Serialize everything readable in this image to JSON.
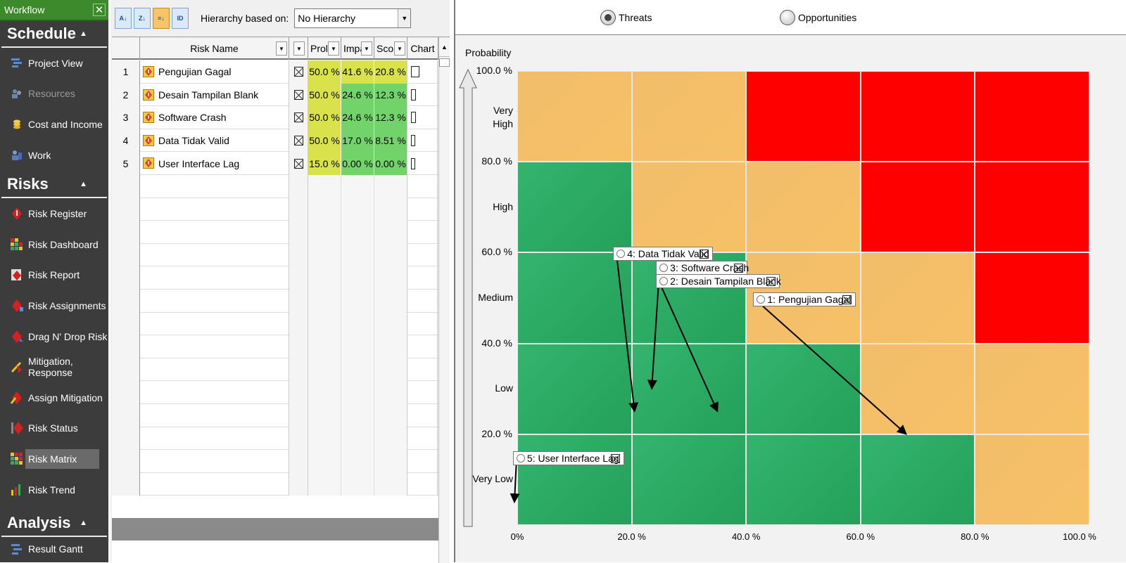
{
  "sidebar": {
    "title": "Workflow",
    "sections": [
      {
        "title": "Schedule",
        "items": [
          "Project View",
          "Resources",
          "Cost and Income",
          "Work"
        ]
      },
      {
        "title": "Risks",
        "items": [
          "Risk Register",
          "Risk Dashboard",
          "Risk Report",
          "Risk Assignments",
          "Drag N' Drop Risk",
          "Mitigation, Response",
          "Assign Mitigation",
          "Risk Status",
          "Risk Matrix",
          "Risk Trend"
        ]
      },
      {
        "title": "Analysis",
        "items": [
          "Result Gantt"
        ]
      }
    ],
    "active_item": "Risk Matrix",
    "disabled_item": "Resources"
  },
  "toolbar": {
    "hierarchy_label": "Hierarchy based on:",
    "hierarchy_value": "No Hierarchy",
    "buttons": [
      "sort-ascending-icon",
      "sort-descending-icon",
      "sort-custom-icon",
      "sort-id-icon"
    ]
  },
  "grid": {
    "headers": {
      "name": "Risk Name",
      "prob": "Prol",
      "impact": "Impa",
      "score": "Sco",
      "chart": "Chart"
    },
    "rows": [
      {
        "num": "1",
        "name": "Pengujian Gagal",
        "prob": "50.0 %",
        "impact": "41.6 %",
        "score": "20.8 %",
        "impact_color": "yellow",
        "score_color": "yellow",
        "chart_level": 0.208
      },
      {
        "num": "2",
        "name": "Desain Tampilan Blank",
        "prob": "50.0 %",
        "impact": "24.6 %",
        "score": "12.3 %",
        "impact_color": "green",
        "score_color": "green",
        "chart_level": 0.123
      },
      {
        "num": "3",
        "name": "Software Crash",
        "prob": "50.0 %",
        "impact": "24.6 %",
        "score": "12.3 %",
        "impact_color": "green",
        "score_color": "green",
        "chart_level": 0.123
      },
      {
        "num": "4",
        "name": "Data Tidak Valid",
        "prob": "50.0 %",
        "impact": "17.0 %",
        "score": "8.51 %",
        "impact_color": "green",
        "score_color": "green",
        "chart_level": 0.085
      },
      {
        "num": "5",
        "name": "User Interface Lag",
        "prob": "15.0 %",
        "impact": "0.00 %",
        "score": "0.00 %",
        "impact_color": "green",
        "score_color": "green",
        "chart_level": 0.0
      }
    ]
  },
  "matrix": {
    "radio": {
      "threats": "Threats",
      "opportunities": "Opportunities",
      "selected": "Threats"
    },
    "y_title": "Probability",
    "y_ticks": [
      "100.0 %",
      "80.0 %",
      "60.0 %",
      "40.0 %",
      "20.0 %"
    ],
    "y_categories": [
      "Very High",
      "High",
      "Medium",
      "Low",
      "Very Low"
    ],
    "x_ticks": [
      "0%",
      "20.0 %",
      "40.0 %",
      "60.0 %",
      "80.0 %",
      "100.0 %"
    ],
    "colors": {
      "green": "#2aa862",
      "orange": "#f4be66",
      "red": "#ff0000"
    },
    "cells": [
      [
        "orange",
        "orange",
        "red",
        "red",
        "red"
      ],
      [
        "green",
        "orange",
        "orange",
        "red",
        "red"
      ],
      [
        "green",
        "green",
        "orange",
        "orange",
        "red"
      ],
      [
        "green",
        "green",
        "green",
        "orange",
        "orange"
      ],
      [
        "green",
        "green",
        "green",
        "green",
        "orange"
      ]
    ],
    "risk_tags": [
      {
        "label": "4: Data Tidak Valid",
        "from": [
          17,
          60
        ],
        "to": [
          20.5,
          25
        ]
      },
      {
        "label": "3: Software Crash",
        "from": [
          24.5,
          57
        ],
        "to": [
          23.5,
          30
        ]
      },
      {
        "label": "2: Desain Tampilan Blank",
        "from": [
          24.5,
          54
        ],
        "to": [
          35,
          25
        ]
      },
      {
        "label": "1: Pengujian Gagal",
        "from": [
          41.5,
          50
        ],
        "to": [
          68,
          20
        ]
      },
      {
        "label": "5: User Interface Lag",
        "from": [
          -0.5,
          15
        ],
        "to": [
          -0.5,
          5
        ]
      }
    ]
  }
}
